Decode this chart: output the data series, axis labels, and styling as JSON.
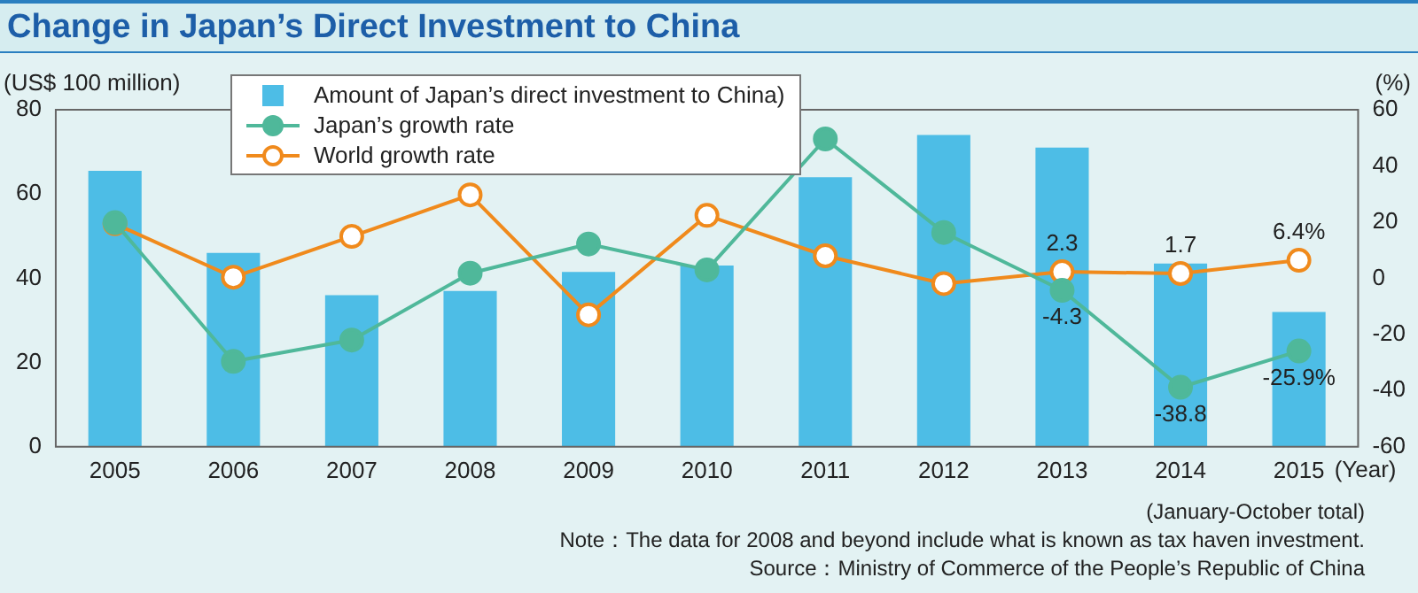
{
  "chart_data": {
    "type": "bar",
    "title": "Change in Japan’s Direct  Investment to China",
    "categories": [
      "2005",
      "2006",
      "2007",
      "2008",
      "2009",
      "2010",
      "2011",
      "2012",
      "2013",
      "2014",
      "2015"
    ],
    "xlabel": "(Year)",
    "ylabel": "(US$ 100 million)",
    "y2label": "(%)",
    "series": [
      {
        "name": "Amount of Japan’s direct investment to China)",
        "color": "#4dbde6",
        "values": [
          65.5,
          46,
          36,
          37,
          41.5,
          43,
          64,
          74,
          71,
          43.5,
          32
        ]
      },
      {
        "name": "Japan’s growth rate",
        "type": "line",
        "axis": "y2",
        "color": "#4fb89a",
        "marker": "circle",
        "values": [
          19.8,
          -29.6,
          -22,
          1.8,
          12.2,
          3,
          49.6,
          16.3,
          -4.3,
          -38.8,
          -25.9
        ],
        "value_labels": [
          null,
          null,
          null,
          null,
          null,
          null,
          null,
          null,
          "-4.3",
          "-38.8",
          "-25.9%"
        ]
      },
      {
        "name": "World growth rate",
        "type": "line",
        "axis": "y2",
        "color": "#f08a1c",
        "marker": "circle",
        "values": [
          19.4,
          0.4,
          14.9,
          29.7,
          -13,
          22.4,
          8,
          -1.9,
          2.3,
          1.7,
          6.4
        ],
        "value_labels": [
          null,
          null,
          null,
          null,
          null,
          null,
          null,
          null,
          "2.3",
          "1.7",
          "6.4%"
        ]
      }
    ],
    "ylim": [
      0,
      80
    ],
    "yticks": [
      0,
      20,
      40,
      60,
      80
    ],
    "y2lim": [
      -60,
      60
    ],
    "y2ticks": [
      -60,
      -40,
      -20,
      0,
      20,
      40,
      60
    ],
    "grid": false,
    "legend": "top left",
    "annotations": [
      "(January-October total)",
      "Note：The data for 2008 and beyond include what is known as tax haven investment.",
      "Source：Ministry of Commerce of the People’s Republic of China"
    ]
  }
}
